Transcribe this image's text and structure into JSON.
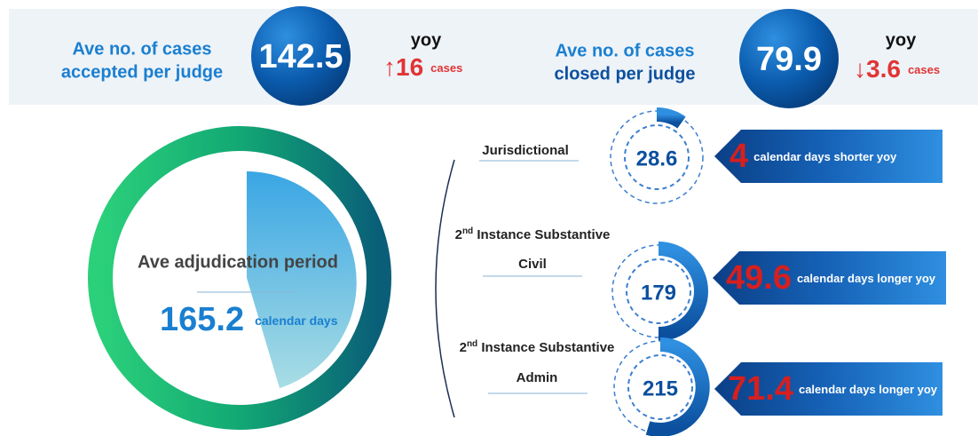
{
  "top": [
    {
      "label_lines": [
        "Ave no. of cases",
        "accepted per judge"
      ],
      "value": "142.5",
      "yoy": "yoy",
      "arrow": "↑",
      "change": "16",
      "unit": "cases"
    },
    {
      "label_lines": [
        "Ave no. of cases",
        "closed per judge"
      ],
      "value": "79.9",
      "yoy": "yoy",
      "arrow": "↓",
      "change": "3.6",
      "unit": "cases"
    }
  ],
  "summary": {
    "title": "Ave adjudication period",
    "value": "165.2",
    "unit": "calendar days"
  },
  "rows": [
    {
      "label": "Jurisdictional",
      "value": "28.6",
      "change": "4",
      "note": "calendar days shorter yoy"
    },
    {
      "label_ordinal": "2",
      "label_suffix": "nd",
      "label_rest": " Instance Substantive",
      "label_second": "Civil",
      "value": "179",
      "change": "49.6",
      "note": "calendar days longer yoy"
    },
    {
      "label_ordinal": "2",
      "label_suffix": "nd",
      "label_rest": " Instance Substantive",
      "label_second": "Admin",
      "value": "215",
      "change": "71.4",
      "note": "calendar days  longer yoy"
    }
  ]
}
